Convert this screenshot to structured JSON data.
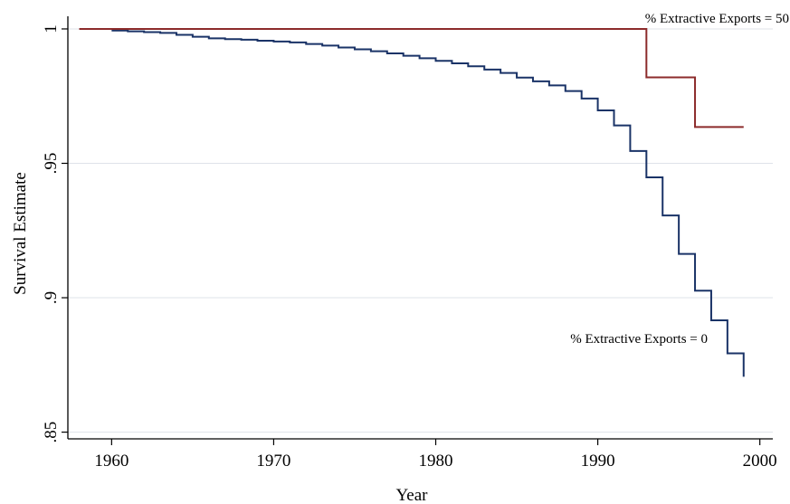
{
  "chart_data": {
    "type": "line",
    "step": true,
    "title": "",
    "xlabel": "Year",
    "ylabel": "Survival Estimate",
    "xlim": [
      1957.3,
      2000.8
    ],
    "ylim": [
      0.8475,
      1.0047
    ],
    "xticks": [
      1960,
      1970,
      1980,
      1990,
      2000
    ],
    "yticks": [
      0.85,
      0.9,
      0.95,
      1
    ],
    "ytick_labels": [
      ".85",
      ".9",
      ".95",
      "1"
    ],
    "grid": "horizontal",
    "series": [
      {
        "name": "% Extractive Exports = 0",
        "color": "#1a3367",
        "label_position": "lower-right",
        "x": [
          1960,
          1961,
          1962,
          1963,
          1964,
          1965,
          1966,
          1967,
          1968,
          1969,
          1970,
          1971,
          1972,
          1973,
          1974,
          1975,
          1976,
          1977,
          1978,
          1979,
          1980,
          1981,
          1982,
          1983,
          1984,
          1985,
          1986,
          1987,
          1988,
          1989,
          1990,
          1991,
          1992,
          1993,
          1994,
          1995,
          1996,
          1997,
          1998,
          1999
        ],
        "y": [
          0.9994,
          0.9991,
          0.9988,
          0.9985,
          0.9978,
          0.9971,
          0.9965,
          0.9962,
          0.996,
          0.9956,
          0.9953,
          0.995,
          0.9944,
          0.9938,
          0.9931,
          0.9924,
          0.9917,
          0.9909,
          0.99,
          0.9891,
          0.9881,
          0.9872,
          0.9861,
          0.9849,
          0.9836,
          0.9819,
          0.9805,
          0.979,
          0.9769,
          0.9741,
          0.9697,
          0.9641,
          0.9546,
          0.9448,
          0.9306,
          0.9163,
          0.9026,
          0.8916,
          0.8793,
          0.8706
        ]
      },
      {
        "name": "% Extractive Exports = 50",
        "color": "#8c2b2b",
        "label_position": "top-right",
        "x": [
          1958,
          1993,
          1996,
          1999
        ],
        "y": [
          1.0,
          0.982,
          0.9635,
          0.9635
        ]
      }
    ]
  }
}
